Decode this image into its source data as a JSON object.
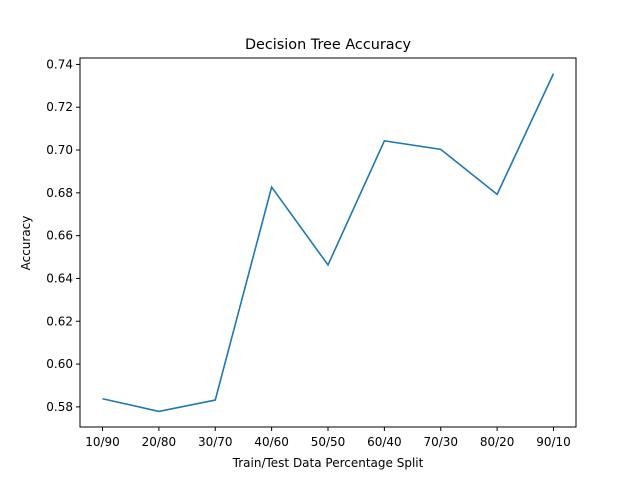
{
  "chart_data": {
    "type": "line",
    "title": "Decision Tree Accuracy",
    "xlabel": "Train/Test Data Percentage Split",
    "ylabel": "Accuracy",
    "categories": [
      "10/90",
      "20/80",
      "30/70",
      "40/60",
      "50/50",
      "60/40",
      "70/30",
      "80/20",
      "90/10"
    ],
    "series": [
      {
        "values": [
          0.5838,
          0.5779,
          0.5832,
          0.6827,
          0.6463,
          0.7043,
          0.7003,
          0.6793,
          0.7357
        ]
      }
    ],
    "ylim": [
      0.5706,
      0.743
    ],
    "yticks": [
      "0.58",
      "0.60",
      "0.62",
      "0.64",
      "0.66",
      "0.68",
      "0.70",
      "0.72",
      "0.74"
    ],
    "ytick_values": [
      0.58,
      0.6,
      0.62,
      0.64,
      0.66,
      0.68,
      0.7,
      0.72,
      0.74
    ],
    "grid": false,
    "line_color": "#1f77b4"
  }
}
